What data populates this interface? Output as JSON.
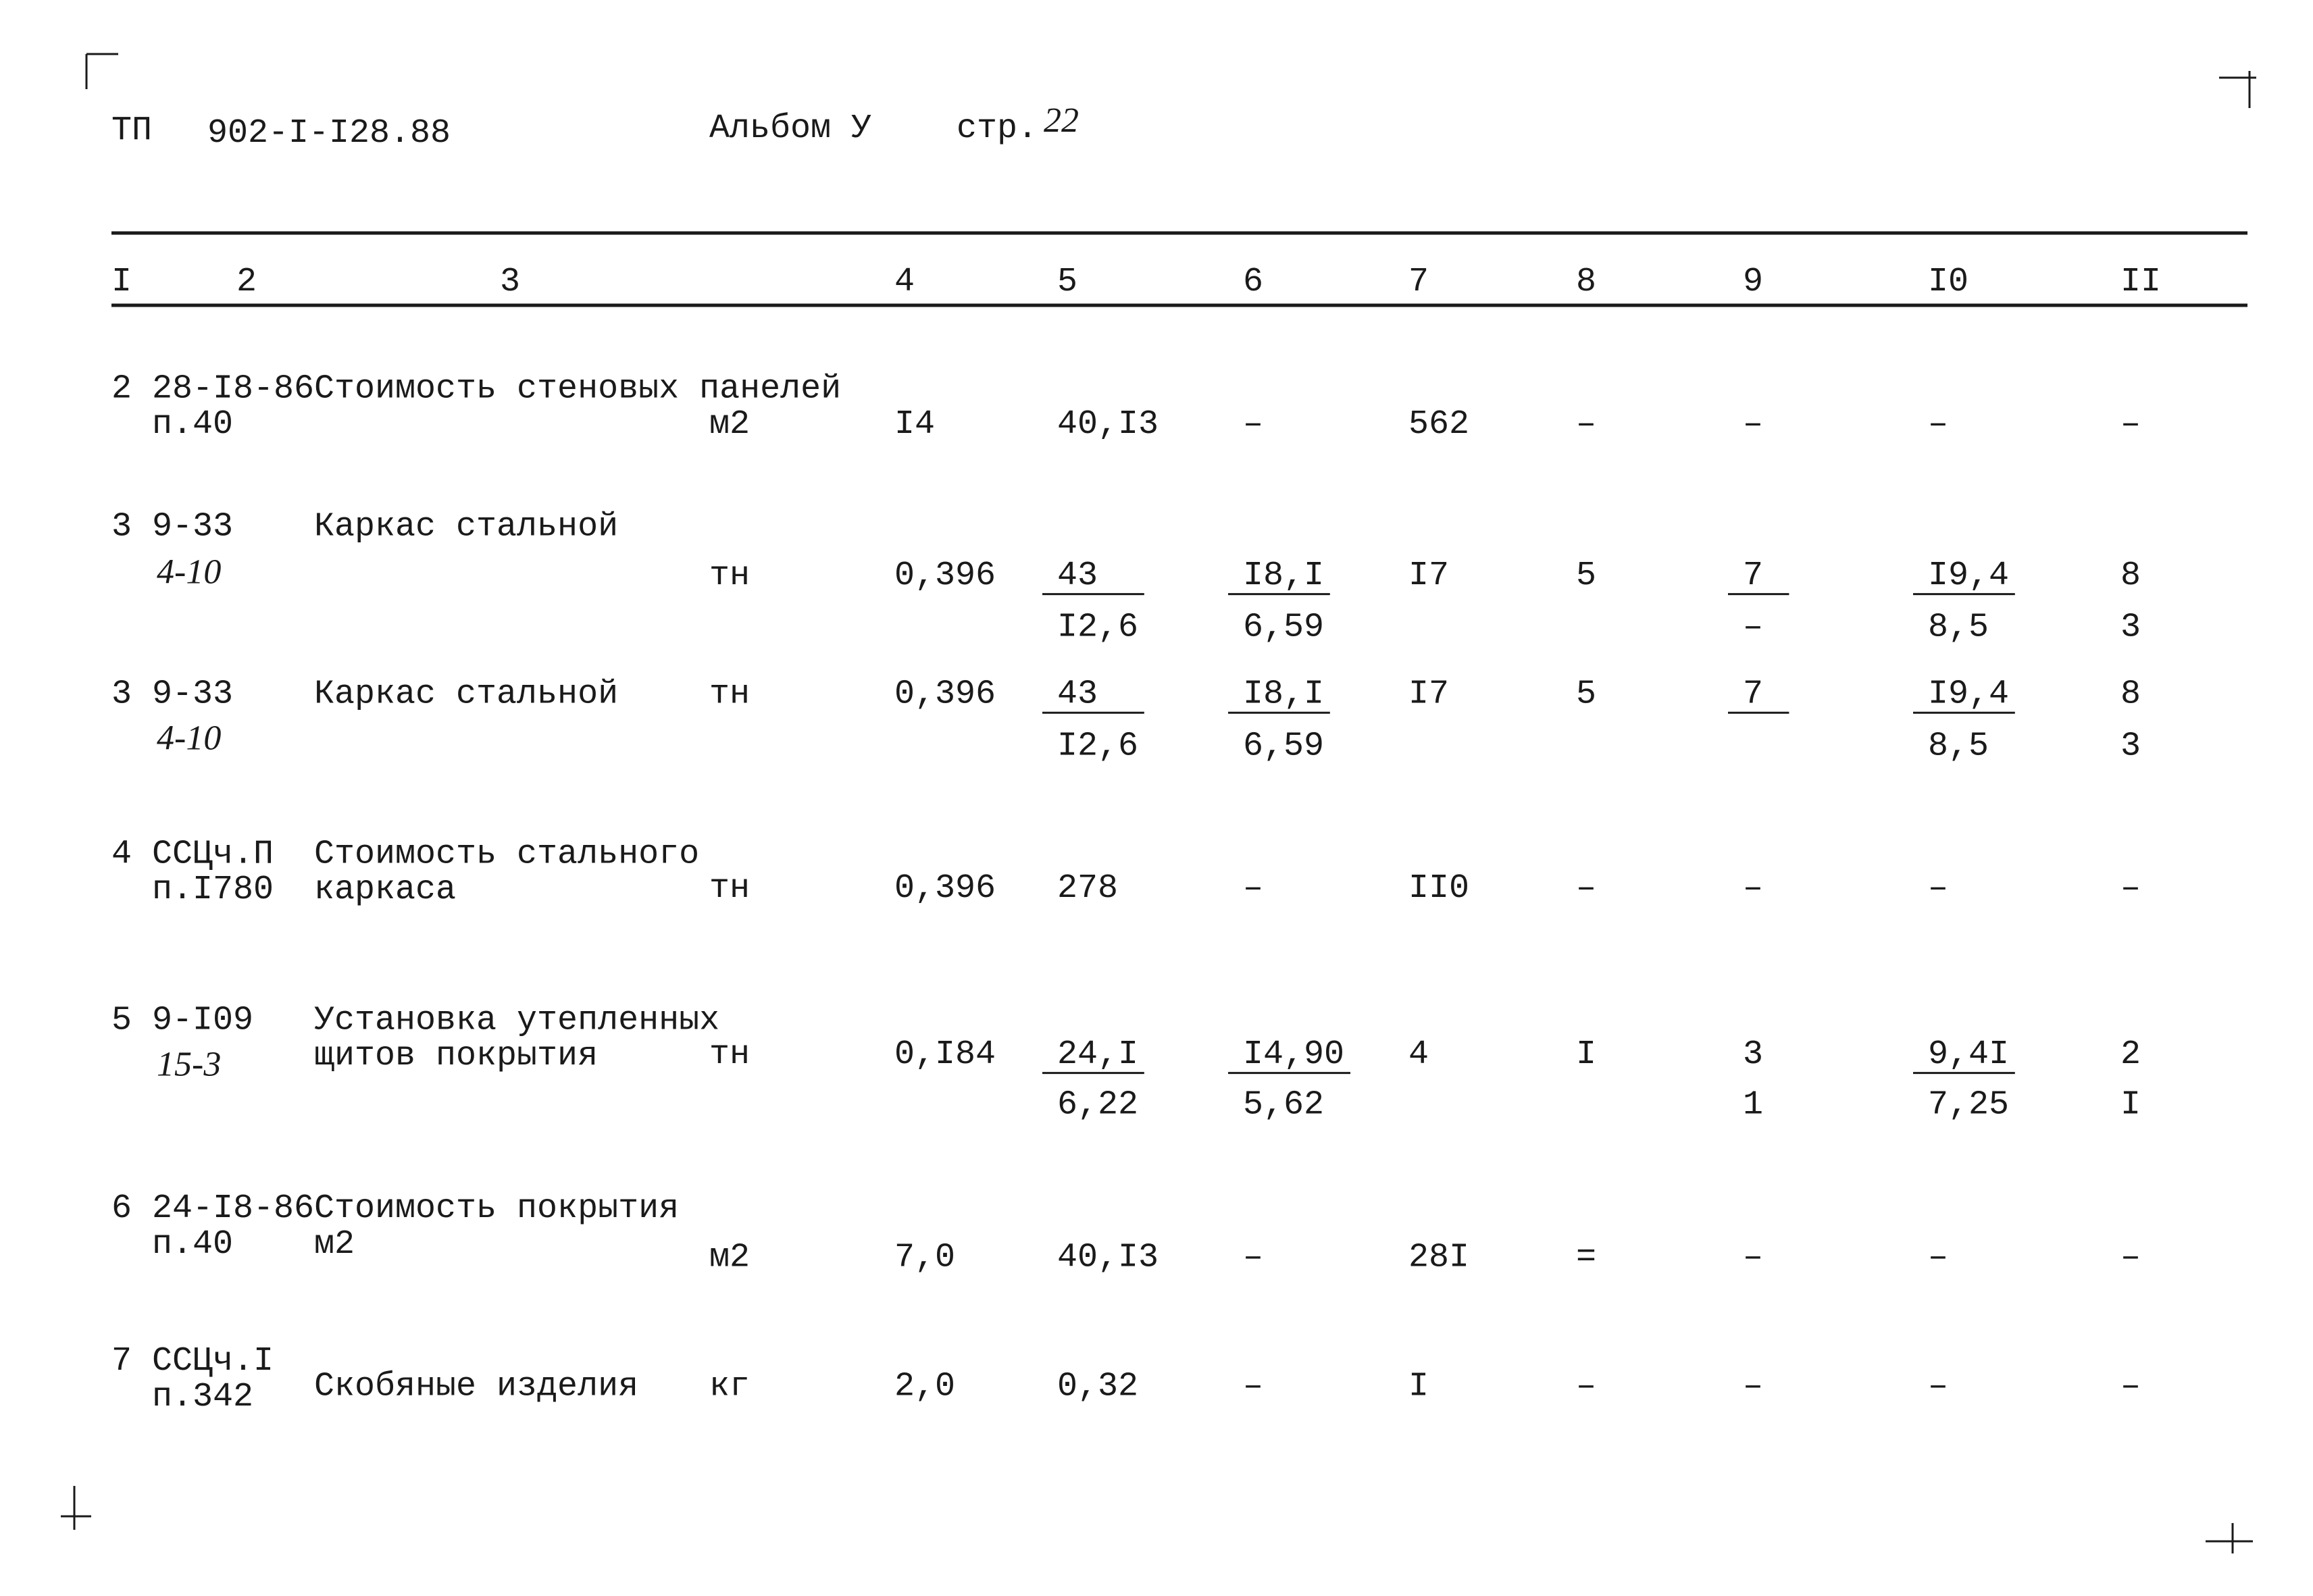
{
  "header": {
    "doc": "ТП",
    "code": "902-I-I28.88",
    "album": "Альбом У",
    "page_label": "стр.",
    "page_num": "22"
  },
  "table": {
    "columns": [
      "I",
      "2",
      "3",
      "4",
      "5",
      "6",
      "7",
      "8",
      "9",
      "I0",
      "II"
    ],
    "rows": [
      {
        "no": "2",
        "code": [
          "28-I8-86",
          "п.40"
        ],
        "name": [
          "Стоимость стеновых панелей"
        ],
        "unit": "м2",
        "qty": "I4",
        "cols": [
          "40,I3",
          "–",
          "562",
          "–",
          "–",
          "–",
          "–"
        ]
      },
      {
        "no": "3",
        "code": [
          "9-33"
        ],
        "note": "4-10",
        "name": [
          "Каркас стальной"
        ],
        "unit": "тн",
        "qty": "0,396",
        "cols": [
          {
            "top": "43",
            "bottom": "I2,6",
            "underline": true
          },
          {
            "top": "I8,I",
            "bottom": "6,59",
            "underline": true
          },
          "I7",
          "5",
          {
            "top": "7",
            "bottom": "–",
            "underline": true
          },
          {
            "top": "I9,4",
            "bottom": "8,5",
            "underline": true
          },
          {
            "top": "8",
            "bottom": "3"
          }
        ]
      },
      {
        "no": "3",
        "code": [
          "9-33"
        ],
        "note": "4-10",
        "name": [
          "Каркас стальной"
        ],
        "unit": "тн",
        "qty": "0,396",
        "cols": [
          {
            "top": "43",
            "bottom": "I2,6",
            "underline": true
          },
          {
            "top": "I8,I",
            "bottom": "6,59",
            "underline": true
          },
          "I7",
          "5",
          {
            "top": "7",
            "underline": true
          },
          {
            "top": "I9,4",
            "bottom": "8,5",
            "underline": true
          },
          {
            "top": "8",
            "bottom": "3"
          }
        ]
      },
      {
        "no": "4",
        "code": [
          "ССЦч.П",
          "п.I780"
        ],
        "name": [
          "Стоимость стального",
          "каркаса"
        ],
        "unit": "тн",
        "qty": "0,396",
        "cols": [
          "278",
          "–",
          "II0",
          "–",
          "–",
          "–",
          "–"
        ]
      },
      {
        "no": "5",
        "code": [
          "9-I09"
        ],
        "note": "15-3",
        "name": [
          "Установка утепленных",
          "щитов покрытия"
        ],
        "unit": "тн",
        "qty": "0,I84",
        "cols": [
          {
            "top": "24,I",
            "bottom": "6,22",
            "underline": true
          },
          {
            "top": "I4,90",
            "bottom": "5,62",
            "underline": true
          },
          "4",
          "I",
          {
            "top": "3",
            "bottom": "1"
          },
          {
            "top": "9,4I",
            "bottom": "7,25",
            "underline": true
          },
          {
            "top": "2",
            "bottom": "I"
          }
        ]
      },
      {
        "no": "6",
        "code": [
          "24-I8-86",
          "п.40"
        ],
        "name": [
          "Стоимость покрытия",
          "м2"
        ],
        "unit": "м2",
        "qty": "7,0",
        "cols": [
          "40,I3",
          "–",
          "28I",
          "=",
          "–",
          "–",
          "–"
        ]
      },
      {
        "no": "7",
        "code": [
          "ССЦч.I",
          "п.342"
        ],
        "name": [
          "Скобяные изделия"
        ],
        "unit": "кг",
        "qty": "2,0",
        "cols": [
          "0,32",
          "–",
          "I",
          "–",
          "–",
          "–",
          "–"
        ]
      }
    ]
  }
}
